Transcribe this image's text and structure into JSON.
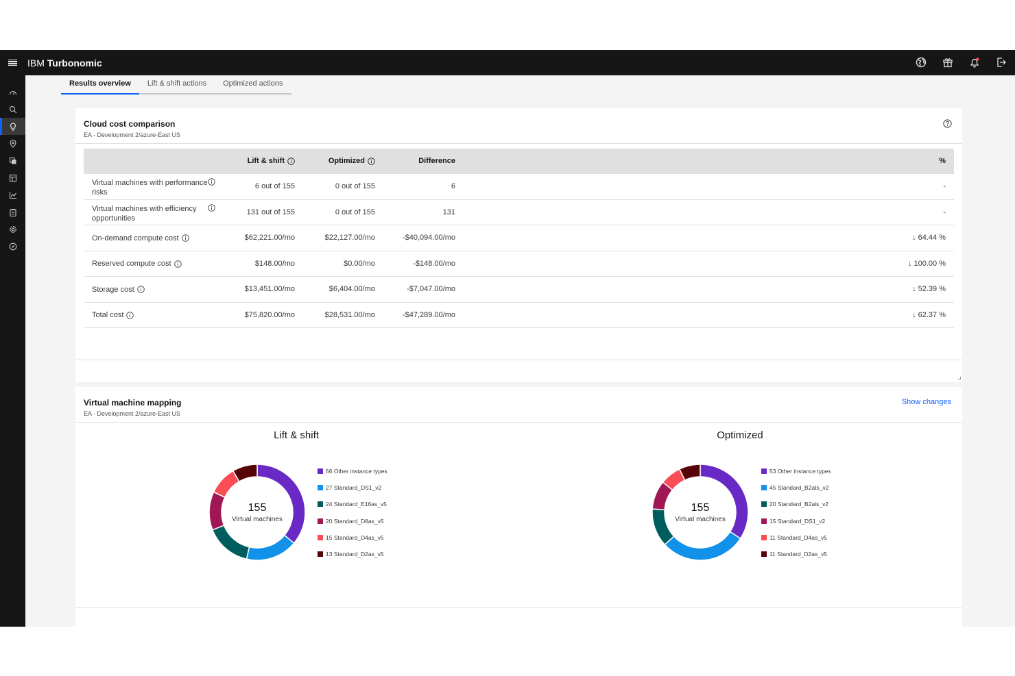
{
  "header": {
    "brand_prefix": "IBM",
    "brand_name": "Turbonomic",
    "icons": [
      "globe-icon",
      "gift-icon",
      "notification-icon",
      "logout-icon"
    ]
  },
  "sidebar": {
    "icons": [
      "dashboard-icon",
      "search-icon",
      "lightbulb-icon",
      "location-icon",
      "copy-icon",
      "table-icon",
      "chart-icon",
      "clipboard-icon",
      "settings-icon",
      "compass-icon"
    ],
    "active": "lightbulb-icon"
  },
  "tabs": [
    {
      "label": "Results overview",
      "active": true
    },
    {
      "label": "Lift & shift actions",
      "active": false
    },
    {
      "label": "Optimized actions",
      "active": false
    }
  ],
  "cost": {
    "title": "Cloud cost comparison",
    "subtitle": "EA - Development 2/azure-East US",
    "headers": {
      "lift": "Lift & shift",
      "optimized": "Optimized",
      "difference": "Difference",
      "percent": "%"
    },
    "rows": [
      {
        "label": "Virtual machines with performance risks",
        "lift": "6 out of 155",
        "optimized": "0 out of 155",
        "difference": "6",
        "percent": "-"
      },
      {
        "label": "Virtual machines with efficiency opportunities",
        "lift": "131 out of 155",
        "optimized": "0 out of 155",
        "difference": "131",
        "percent": "-"
      },
      {
        "label": "On-demand compute cost",
        "lift": "$62,221.00/mo",
        "optimized": "$22,127.00/mo",
        "difference": "-$40,094.00/mo",
        "percent": "↓ 64.44 %"
      },
      {
        "label": "Reserved compute cost",
        "lift": "$148.00/mo",
        "optimized": "$0.00/mo",
        "difference": "-$148.00/mo",
        "percent": "↓ 100.00 %"
      },
      {
        "label": "Storage cost",
        "lift": "$13,451.00/mo",
        "optimized": "$6,404.00/mo",
        "difference": "-$7,047.00/mo",
        "percent": "↓ 52.39 %"
      },
      {
        "label": "Total cost",
        "lift": "$75,820.00/mo",
        "optimized": "$28,531.00/mo",
        "difference": "-$47,289.00/mo",
        "percent": "↓ 62.37 %"
      }
    ]
  },
  "mapping": {
    "title": "Virtual machine mapping",
    "subtitle": "EA - Development 2/azure-East US",
    "show_changes": "Show changes",
    "lift": {
      "title": "Lift & shift",
      "total": "155",
      "center_label": "Virtual machines",
      "legend": [
        {
          "label": "56 Other instance types",
          "value": 56,
          "color": "#6929c4"
        },
        {
          "label": "27 Standard_DS1_v2",
          "value": 27,
          "color": "#1192e8"
        },
        {
          "label": "24 Standard_E16as_v5",
          "value": 24,
          "color": "#005d5d"
        },
        {
          "label": "20 Standard_D8as_v5",
          "value": 20,
          "color": "#9f1853"
        },
        {
          "label": "15 Standard_D4as_v5",
          "value": 15,
          "color": "#fa4d56"
        },
        {
          "label": "13 Standard_D2as_v5",
          "value": 13,
          "color": "#570408"
        }
      ]
    },
    "optimized": {
      "title": "Optimized",
      "total": "155",
      "center_label": "Virtual machines",
      "legend": [
        {
          "label": "53 Other instance types",
          "value": 53,
          "color": "#6929c4"
        },
        {
          "label": "45 Standard_B2ats_v2",
          "value": 45,
          "color": "#1192e8"
        },
        {
          "label": "20 Standard_B2als_v2",
          "value": 20,
          "color": "#005d5d"
        },
        {
          "label": "15 Standard_DS1_v2",
          "value": 15,
          "color": "#9f1853"
        },
        {
          "label": "11 Standard_D4as_v5",
          "value": 11,
          "color": "#fa4d56"
        },
        {
          "label": "11 Standard_D2as_v5",
          "value": 11,
          "color": "#570408"
        }
      ]
    }
  }
}
